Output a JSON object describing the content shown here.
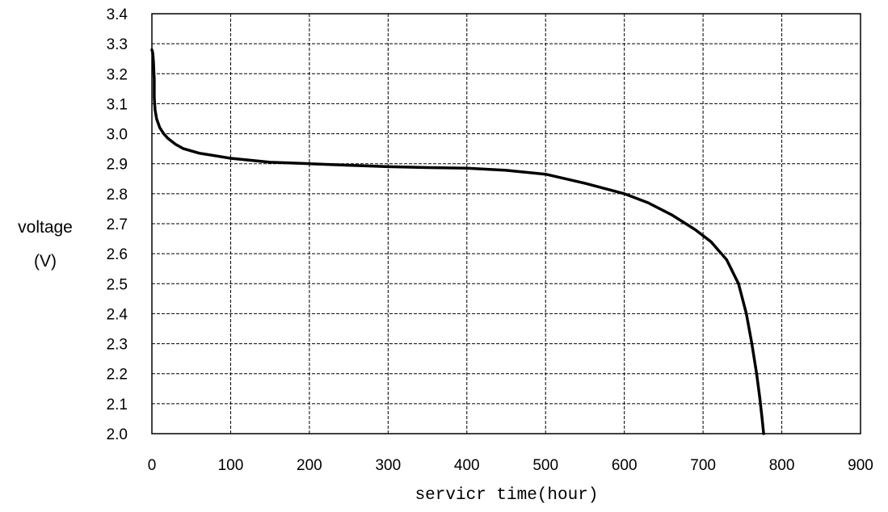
{
  "chart_data": {
    "type": "line",
    "title": "",
    "xlabel": "servicr time(hour)",
    "ylabel_line1": "voltage",
    "ylabel_line2": "(V)",
    "xlim": [
      0,
      900
    ],
    "ylim": [
      2.0,
      3.4
    ],
    "x_ticks": [
      "0",
      "100",
      "200",
      "300",
      "400",
      "500",
      "600",
      "700",
      "800",
      "900"
    ],
    "y_ticks": [
      "2.0",
      "2.1",
      "2.2",
      "2.3",
      "2.4",
      "2.5",
      "2.6",
      "2.7",
      "2.8",
      "2.9",
      "3.0",
      "3.1",
      "3.2",
      "3.3",
      "3.4"
    ],
    "grid": true,
    "grid_style": "dashed",
    "line_color": "#000000",
    "series": [
      {
        "x": [
          0,
          1,
          2,
          3,
          3,
          4,
          6,
          10,
          15,
          20,
          30,
          40,
          60,
          100,
          150,
          200,
          250,
          300,
          350,
          400,
          450,
          500,
          550,
          600,
          630,
          660,
          690,
          710,
          730,
          745,
          755,
          762,
          768,
          772,
          775,
          777
        ],
        "y": [
          3.28,
          3.27,
          3.24,
          3.18,
          3.12,
          3.08,
          3.05,
          3.02,
          3.0,
          2.985,
          2.965,
          2.95,
          2.935,
          2.918,
          2.905,
          2.9,
          2.895,
          2.89,
          2.887,
          2.885,
          2.878,
          2.865,
          2.835,
          2.8,
          2.77,
          2.73,
          2.68,
          2.64,
          2.58,
          2.5,
          2.4,
          2.3,
          2.2,
          2.12,
          2.05,
          2.0
        ]
      }
    ]
  }
}
